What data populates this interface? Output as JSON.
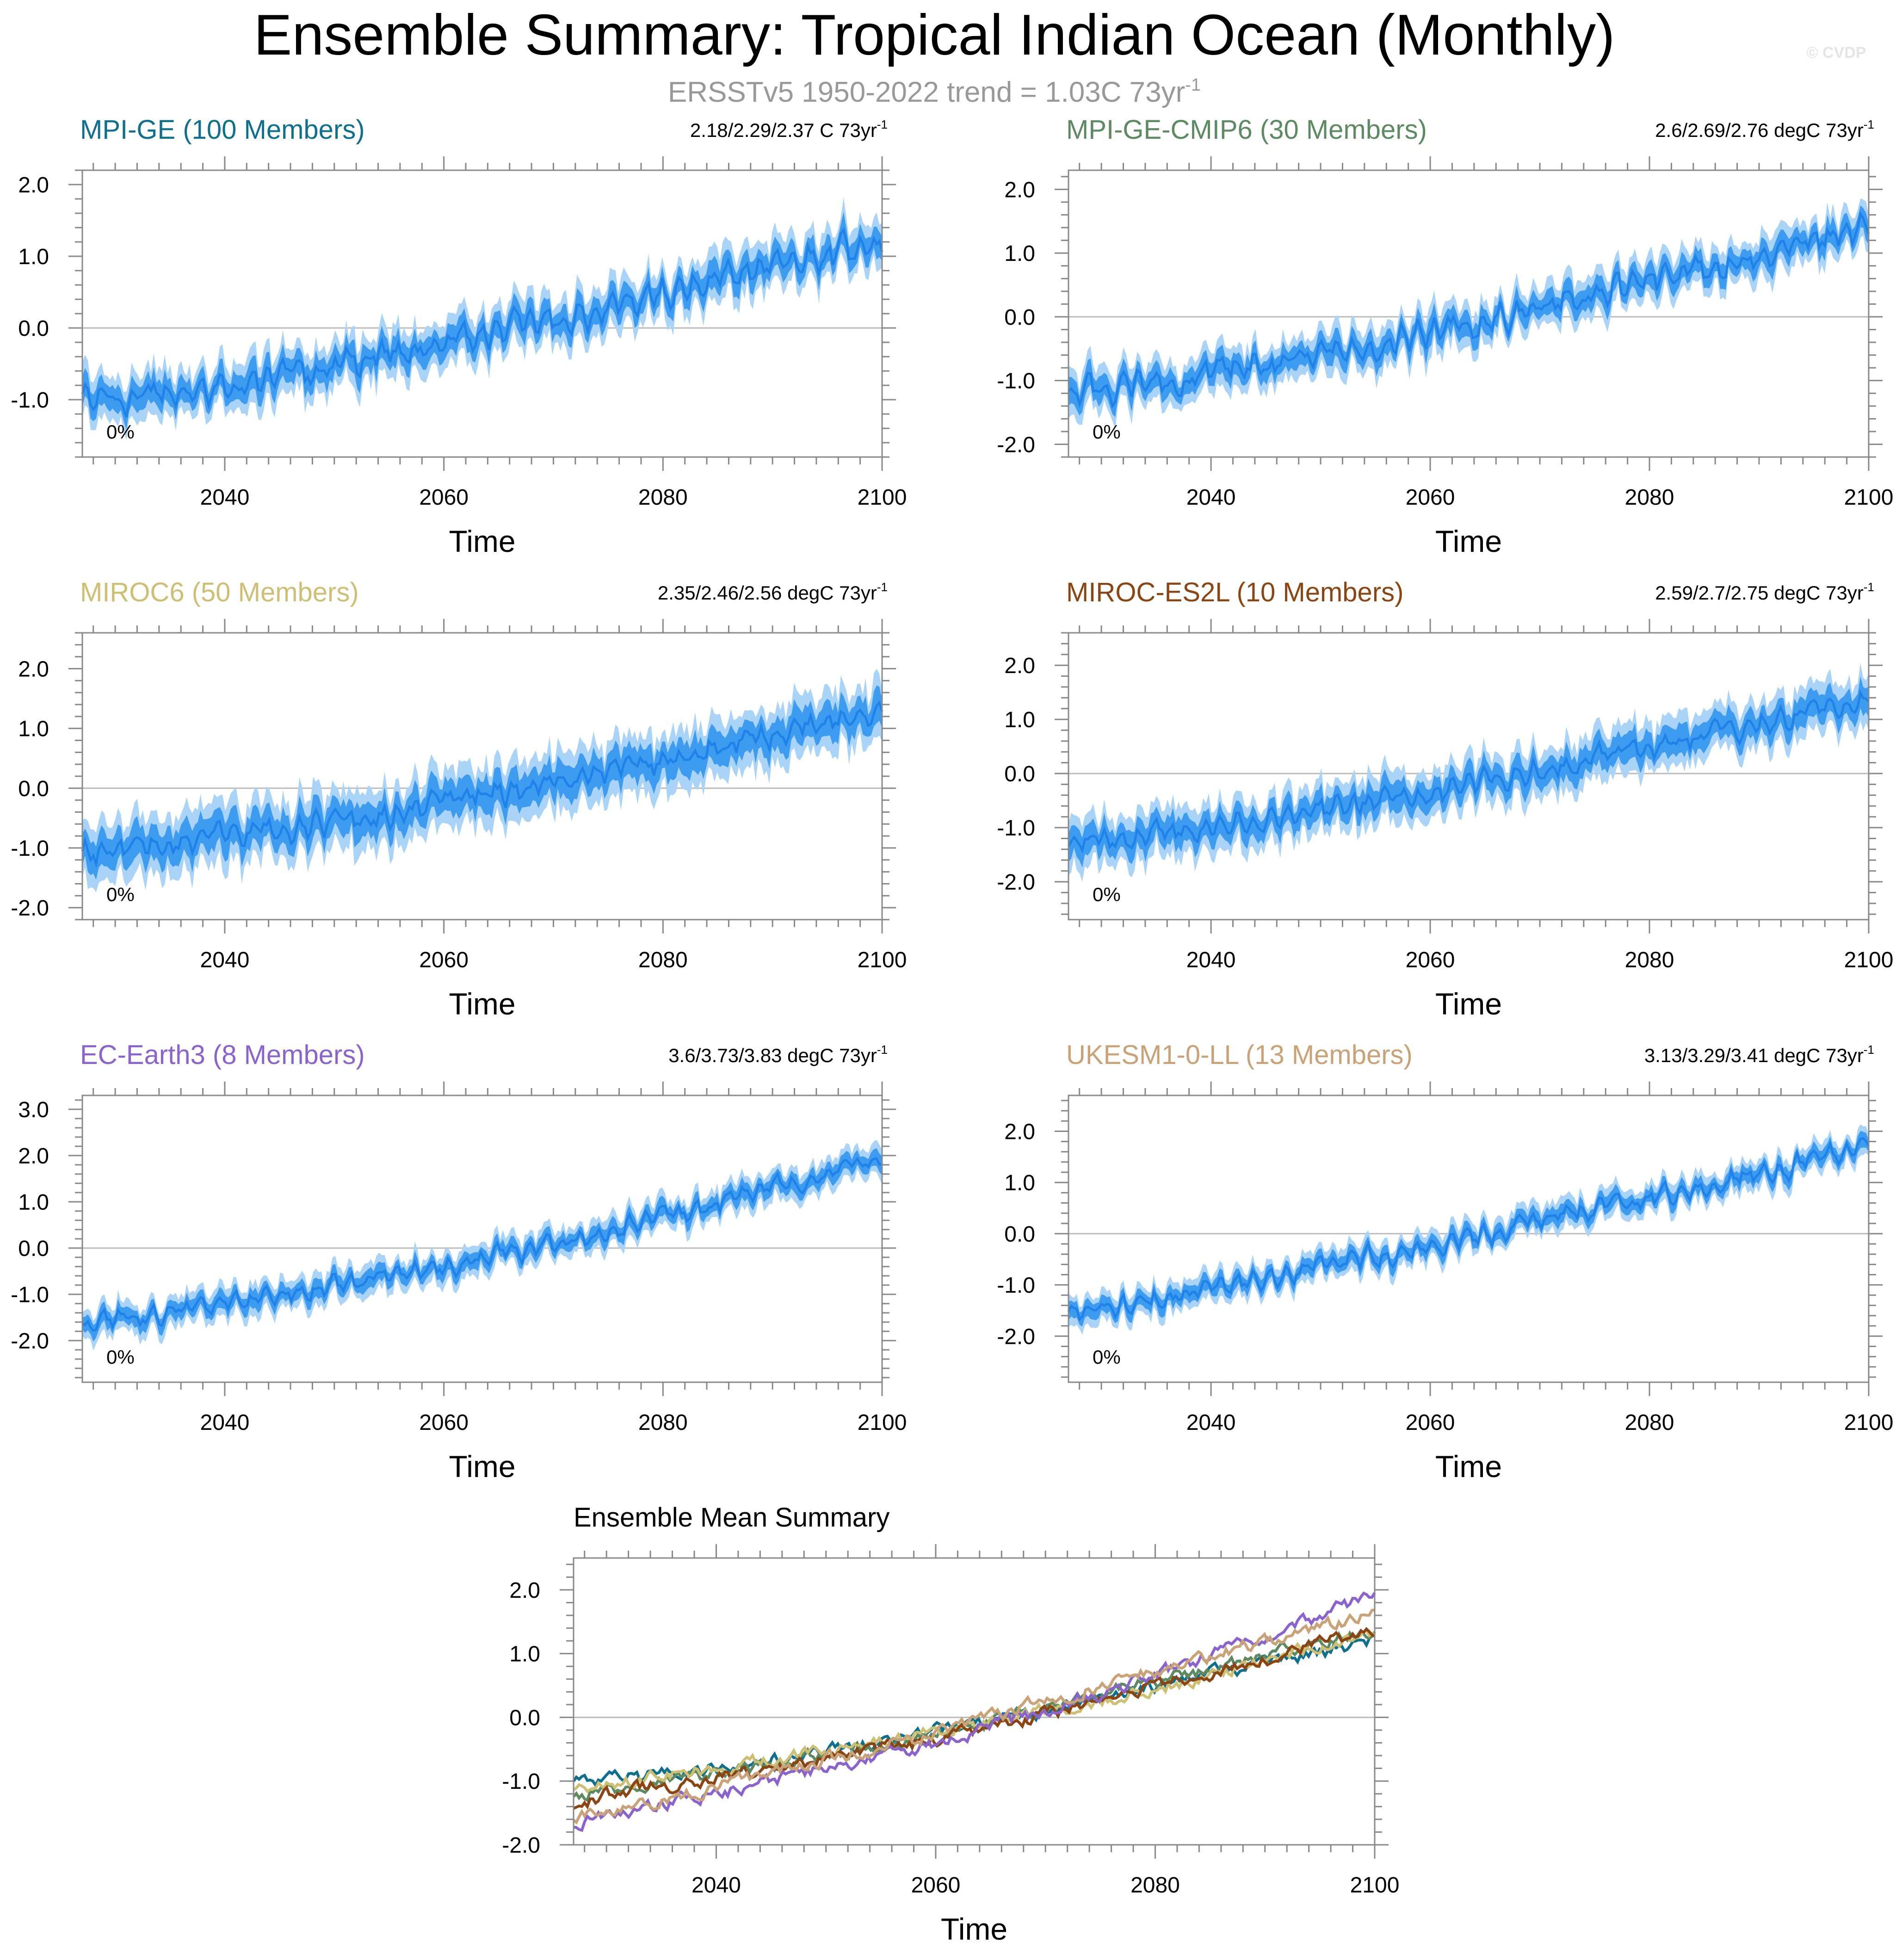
{
  "page": {
    "title": "Ensemble Summary: Tropical Indian Ocean (Monthly)",
    "subtitle_main": "ERSSTv5 1950-2022 trend = 1.03C 73yr",
    "subtitle_sup": "-1",
    "watermark": "© CVDP",
    "trend_sup": "-1"
  },
  "colors": {
    "band_outer": "#a9d4f7",
    "band_inner": "#3d9bf0",
    "mean_line": "#1f82e8",
    "zero_line": "#bbbbbb",
    "axis": "#888888",
    "text": "#000000",
    "subtitle": "#999999",
    "watermark": "#e5e5e5"
  },
  "chart_data": [
    {
      "type": "area",
      "title": "MPI-GE (100 Members)",
      "title_color": "#0e6f8e",
      "trend_label": "2.18/2.29/2.37 C 73yr",
      "xlabel": "Time",
      "ylabel": "",
      "pct_label": "0%",
      "xlim": [
        2027,
        2100
      ],
      "ylim": [
        -1.8,
        2.2
      ],
      "xticks": [
        2040,
        2060,
        2080,
        2100
      ],
      "yticks": [
        -1.0,
        0.0,
        1.0,
        2.0
      ],
      "ytick_labels": [
        "-1.0",
        "0.0",
        "1.0",
        "2.0"
      ],
      "series": [
        {
          "name": "ensemble mean",
          "x": [
            2027,
            2030,
            2040,
            2050,
            2060,
            2070,
            2080,
            2090,
            2100
          ],
          "y": [
            -0.95,
            -1.0,
            -0.8,
            -0.55,
            -0.2,
            0.1,
            0.5,
            0.85,
            1.18
          ]
        },
        {
          "name": "ensemble min",
          "x": [
            2027,
            2030,
            2040,
            2050,
            2060,
            2070,
            2080,
            2090,
            2100
          ],
          "y": [
            -1.25,
            -1.3,
            -1.1,
            -0.85,
            -0.5,
            -0.2,
            0.2,
            0.55,
            0.9
          ]
        },
        {
          "name": "ensemble max",
          "x": [
            2027,
            2030,
            2040,
            2050,
            2060,
            2070,
            2080,
            2090,
            2100
          ],
          "y": [
            -0.65,
            -0.7,
            -0.5,
            -0.25,
            0.1,
            0.4,
            0.8,
            1.15,
            1.5
          ]
        }
      ]
    },
    {
      "type": "area",
      "title": "MPI-GE-CMIP6 (30 Members)",
      "title_color": "#5e8a62",
      "trend_label": "2.6/2.69/2.76 degC 73yr",
      "xlabel": "Time",
      "ylabel": "",
      "pct_label": "0%",
      "xlim": [
        2027,
        2100
      ],
      "ylim": [
        -2.2,
        2.3
      ],
      "xticks": [
        2040,
        2060,
        2080,
        2100
      ],
      "yticks": [
        -2.0,
        -1.0,
        0.0,
        1.0,
        2.0
      ],
      "ytick_labels": [
        "-2.0",
        "-1.0",
        "0.0",
        "1.0",
        "2.0"
      ],
      "series": [
        {
          "name": "ensemble mean",
          "x": [
            2027,
            2030,
            2040,
            2050,
            2060,
            2070,
            2080,
            2090,
            2100
          ],
          "y": [
            -1.2,
            -1.15,
            -0.9,
            -0.6,
            -0.25,
            0.15,
            0.55,
            0.95,
            1.4
          ]
        },
        {
          "name": "ensemble min",
          "x": [
            2027,
            2030,
            2040,
            2050,
            2060,
            2070,
            2080,
            2090,
            2100
          ],
          "y": [
            -1.5,
            -1.45,
            -1.2,
            -0.9,
            -0.55,
            -0.15,
            0.25,
            0.65,
            1.1
          ]
        },
        {
          "name": "ensemble max",
          "x": [
            2027,
            2030,
            2040,
            2050,
            2060,
            2070,
            2080,
            2090,
            2100
          ],
          "y": [
            -0.9,
            -0.85,
            -0.6,
            -0.3,
            0.05,
            0.45,
            0.85,
            1.25,
            1.7
          ]
        }
      ]
    },
    {
      "type": "area",
      "title": "MIROC6 (50 Members)",
      "title_color": "#cdbf74",
      "trend_label": "2.35/2.46/2.56 degC 73yr",
      "xlabel": "Time",
      "ylabel": "",
      "pct_label": "0%",
      "xlim": [
        2027,
        2100
      ],
      "ylim": [
        -2.2,
        2.6
      ],
      "xticks": [
        2040,
        2060,
        2080,
        2100
      ],
      "yticks": [
        -2.0,
        -1.0,
        0.0,
        1.0,
        2.0
      ],
      "ytick_labels": [
        "-2.0",
        "-1.0",
        "0.0",
        "1.0",
        "2.0"
      ],
      "series": [
        {
          "name": "ensemble mean",
          "x": [
            2027,
            2030,
            2040,
            2050,
            2060,
            2070,
            2080,
            2090,
            2100
          ],
          "y": [
            -1.1,
            -1.05,
            -0.8,
            -0.55,
            -0.25,
            0.1,
            0.45,
            0.9,
            1.3
          ]
        },
        {
          "name": "ensemble min",
          "x": [
            2027,
            2030,
            2040,
            2050,
            2060,
            2070,
            2080,
            2090,
            2100
          ],
          "y": [
            -1.55,
            -1.5,
            -1.25,
            -1.0,
            -0.7,
            -0.35,
            0.0,
            0.45,
            0.85
          ]
        },
        {
          "name": "ensemble max",
          "x": [
            2027,
            2030,
            2040,
            2050,
            2060,
            2070,
            2080,
            2090,
            2100
          ],
          "y": [
            -0.65,
            -0.6,
            -0.35,
            -0.1,
            0.2,
            0.55,
            0.9,
            1.35,
            1.75
          ]
        }
      ]
    },
    {
      "type": "area",
      "title": "MIROC-ES2L (10 Members)",
      "title_color": "#8b4513",
      "trend_label": "2.59/2.7/2.75 degC 73yr",
      "xlabel": "Time",
      "ylabel": "",
      "pct_label": "0%",
      "xlim": [
        2027,
        2100
      ],
      "ylim": [
        -2.7,
        2.6
      ],
      "xticks": [
        2040,
        2060,
        2080,
        2100
      ],
      "yticks": [
        -2.0,
        -1.0,
        0.0,
        1.0,
        2.0
      ],
      "ytick_labels": [
        "-2.0",
        "-1.0",
        "0.0",
        "1.0",
        "2.0"
      ],
      "series": [
        {
          "name": "ensemble mean",
          "x": [
            2027,
            2030,
            2040,
            2050,
            2060,
            2070,
            2080,
            2090,
            2100
          ],
          "y": [
            -1.4,
            -1.2,
            -0.95,
            -0.65,
            -0.35,
            0.05,
            0.5,
            0.9,
            1.4
          ]
        },
        {
          "name": "ensemble min",
          "x": [
            2027,
            2030,
            2040,
            2050,
            2060,
            2070,
            2080,
            2090,
            2100
          ],
          "y": [
            -1.8,
            -1.6,
            -1.35,
            -1.05,
            -0.75,
            -0.35,
            0.1,
            0.5,
            1.0
          ]
        },
        {
          "name": "ensemble max",
          "x": [
            2027,
            2030,
            2040,
            2050,
            2060,
            2070,
            2080,
            2090,
            2100
          ],
          "y": [
            -1.0,
            -0.8,
            -0.55,
            -0.25,
            0.05,
            0.45,
            0.9,
            1.3,
            1.8
          ]
        }
      ]
    },
    {
      "type": "area",
      "title": "EC-Earth3 (8 Members)",
      "title_color": "#8a63cf",
      "trend_label": "3.6/3.73/3.83 degC 73yr",
      "xlabel": "Time",
      "ylabel": "",
      "pct_label": "0%",
      "xlim": [
        2027,
        2100
      ],
      "ylim": [
        -2.9,
        3.3
      ],
      "xticks": [
        2040,
        2060,
        2080,
        2100
      ],
      "yticks": [
        -2.0,
        -1.0,
        0.0,
        1.0,
        2.0,
        3.0
      ],
      "ytick_labels": [
        "-2.0",
        "-1.0",
        "0.0",
        "1.0",
        "2.0",
        "3.0"
      ],
      "series": [
        {
          "name": "ensemble mean",
          "x": [
            2027,
            2030,
            2040,
            2050,
            2060,
            2070,
            2080,
            2090,
            2100
          ],
          "y": [
            -1.7,
            -1.55,
            -1.2,
            -0.8,
            -0.4,
            0.1,
            0.65,
            1.3,
            1.9
          ]
        },
        {
          "name": "ensemble min",
          "x": [
            2027,
            2030,
            2040,
            2050,
            2060,
            2070,
            2080,
            2090,
            2100
          ],
          "y": [
            -2.0,
            -1.85,
            -1.5,
            -1.1,
            -0.7,
            -0.2,
            0.35,
            1.0,
            1.6
          ]
        },
        {
          "name": "ensemble max",
          "x": [
            2027,
            2030,
            2040,
            2050,
            2060,
            2070,
            2080,
            2090,
            2100
          ],
          "y": [
            -1.4,
            -1.25,
            -0.9,
            -0.5,
            -0.1,
            0.4,
            0.95,
            1.6,
            2.2
          ]
        }
      ]
    },
    {
      "type": "area",
      "title": "UKESM1-0-LL (13 Members)",
      "title_color": "#c9a277",
      "trend_label": "3.13/3.29/3.41 degC 73yr",
      "xlabel": "Time",
      "ylabel": "",
      "pct_label": "0%",
      "xlim": [
        2027,
        2100
      ],
      "ylim": [
        -2.9,
        2.7
      ],
      "xticks": [
        2040,
        2060,
        2080,
        2100
      ],
      "yticks": [
        -2.0,
        -1.0,
        0.0,
        1.0,
        2.0
      ],
      "ytick_labels": [
        "-2.0",
        "-1.0",
        "0.0",
        "1.0",
        "2.0"
      ],
      "series": [
        {
          "name": "ensemble mean",
          "x": [
            2027,
            2030,
            2040,
            2050,
            2060,
            2070,
            2080,
            2090,
            2100
          ],
          "y": [
            -1.6,
            -1.5,
            -1.1,
            -0.65,
            -0.25,
            0.25,
            0.75,
            1.2,
            1.65
          ]
        },
        {
          "name": "ensemble min",
          "x": [
            2027,
            2030,
            2040,
            2050,
            2060,
            2070,
            2080,
            2090,
            2100
          ],
          "y": [
            -1.85,
            -1.75,
            -1.35,
            -0.9,
            -0.5,
            0.0,
            0.5,
            0.95,
            1.4
          ]
        },
        {
          "name": "ensemble max",
          "x": [
            2027,
            2030,
            2040,
            2050,
            2060,
            2070,
            2080,
            2090,
            2100
          ],
          "y": [
            -1.35,
            -1.25,
            -0.85,
            -0.4,
            0.0,
            0.5,
            1.0,
            1.45,
            1.9
          ]
        }
      ]
    },
    {
      "type": "line",
      "title": "Ensemble Mean Summary",
      "title_color": "#000000",
      "xlabel": "Time",
      "ylabel": "",
      "xlim": [
        2027,
        2100
      ],
      "ylim": [
        -2.0,
        2.5
      ],
      "xticks": [
        2040,
        2060,
        2080,
        2100
      ],
      "yticks": [
        -2.0,
        -1.0,
        0.0,
        1.0,
        2.0
      ],
      "ytick_labels": [
        "-2.0",
        "-1.0",
        "0.0",
        "1.0",
        "2.0"
      ],
      "series": [
        {
          "name": "MPI-GE",
          "color": "#0e6f8e",
          "x": [
            2027,
            2030,
            2040,
            2050,
            2060,
            2070,
            2080,
            2090,
            2100
          ],
          "y": [
            -0.95,
            -1.0,
            -0.8,
            -0.55,
            -0.2,
            0.1,
            0.5,
            0.85,
            1.18
          ]
        },
        {
          "name": "MPI-GE-CMIP6",
          "color": "#5e8a62",
          "x": [
            2027,
            2030,
            2040,
            2050,
            2060,
            2070,
            2080,
            2090,
            2100
          ],
          "y": [
            -1.2,
            -1.15,
            -0.9,
            -0.6,
            -0.25,
            0.15,
            0.55,
            0.95,
            1.4
          ]
        },
        {
          "name": "MIROC6",
          "color": "#cdbf74",
          "x": [
            2027,
            2030,
            2040,
            2050,
            2060,
            2070,
            2080,
            2090,
            2100
          ],
          "y": [
            -1.1,
            -1.05,
            -0.8,
            -0.55,
            -0.25,
            0.1,
            0.45,
            0.9,
            1.3
          ]
        },
        {
          "name": "MIROC-ES2L",
          "color": "#8b4513",
          "x": [
            2027,
            2030,
            2040,
            2050,
            2060,
            2070,
            2080,
            2090,
            2100
          ],
          "y": [
            -1.4,
            -1.2,
            -0.95,
            -0.65,
            -0.35,
            0.05,
            0.5,
            0.9,
            1.4
          ]
        },
        {
          "name": "EC-Earth3",
          "color": "#8a63cf",
          "x": [
            2027,
            2030,
            2040,
            2050,
            2060,
            2070,
            2080,
            2090,
            2100
          ],
          "y": [
            -1.7,
            -1.55,
            -1.2,
            -0.8,
            -0.4,
            0.1,
            0.65,
            1.3,
            1.9
          ]
        },
        {
          "name": "UKESM1-0-LL",
          "color": "#c9a277",
          "x": [
            2027,
            2030,
            2040,
            2050,
            2060,
            2070,
            2080,
            2090,
            2100
          ],
          "y": [
            -1.6,
            -1.5,
            -1.1,
            -0.65,
            -0.25,
            0.25,
            0.75,
            1.2,
            1.65
          ]
        }
      ]
    }
  ]
}
